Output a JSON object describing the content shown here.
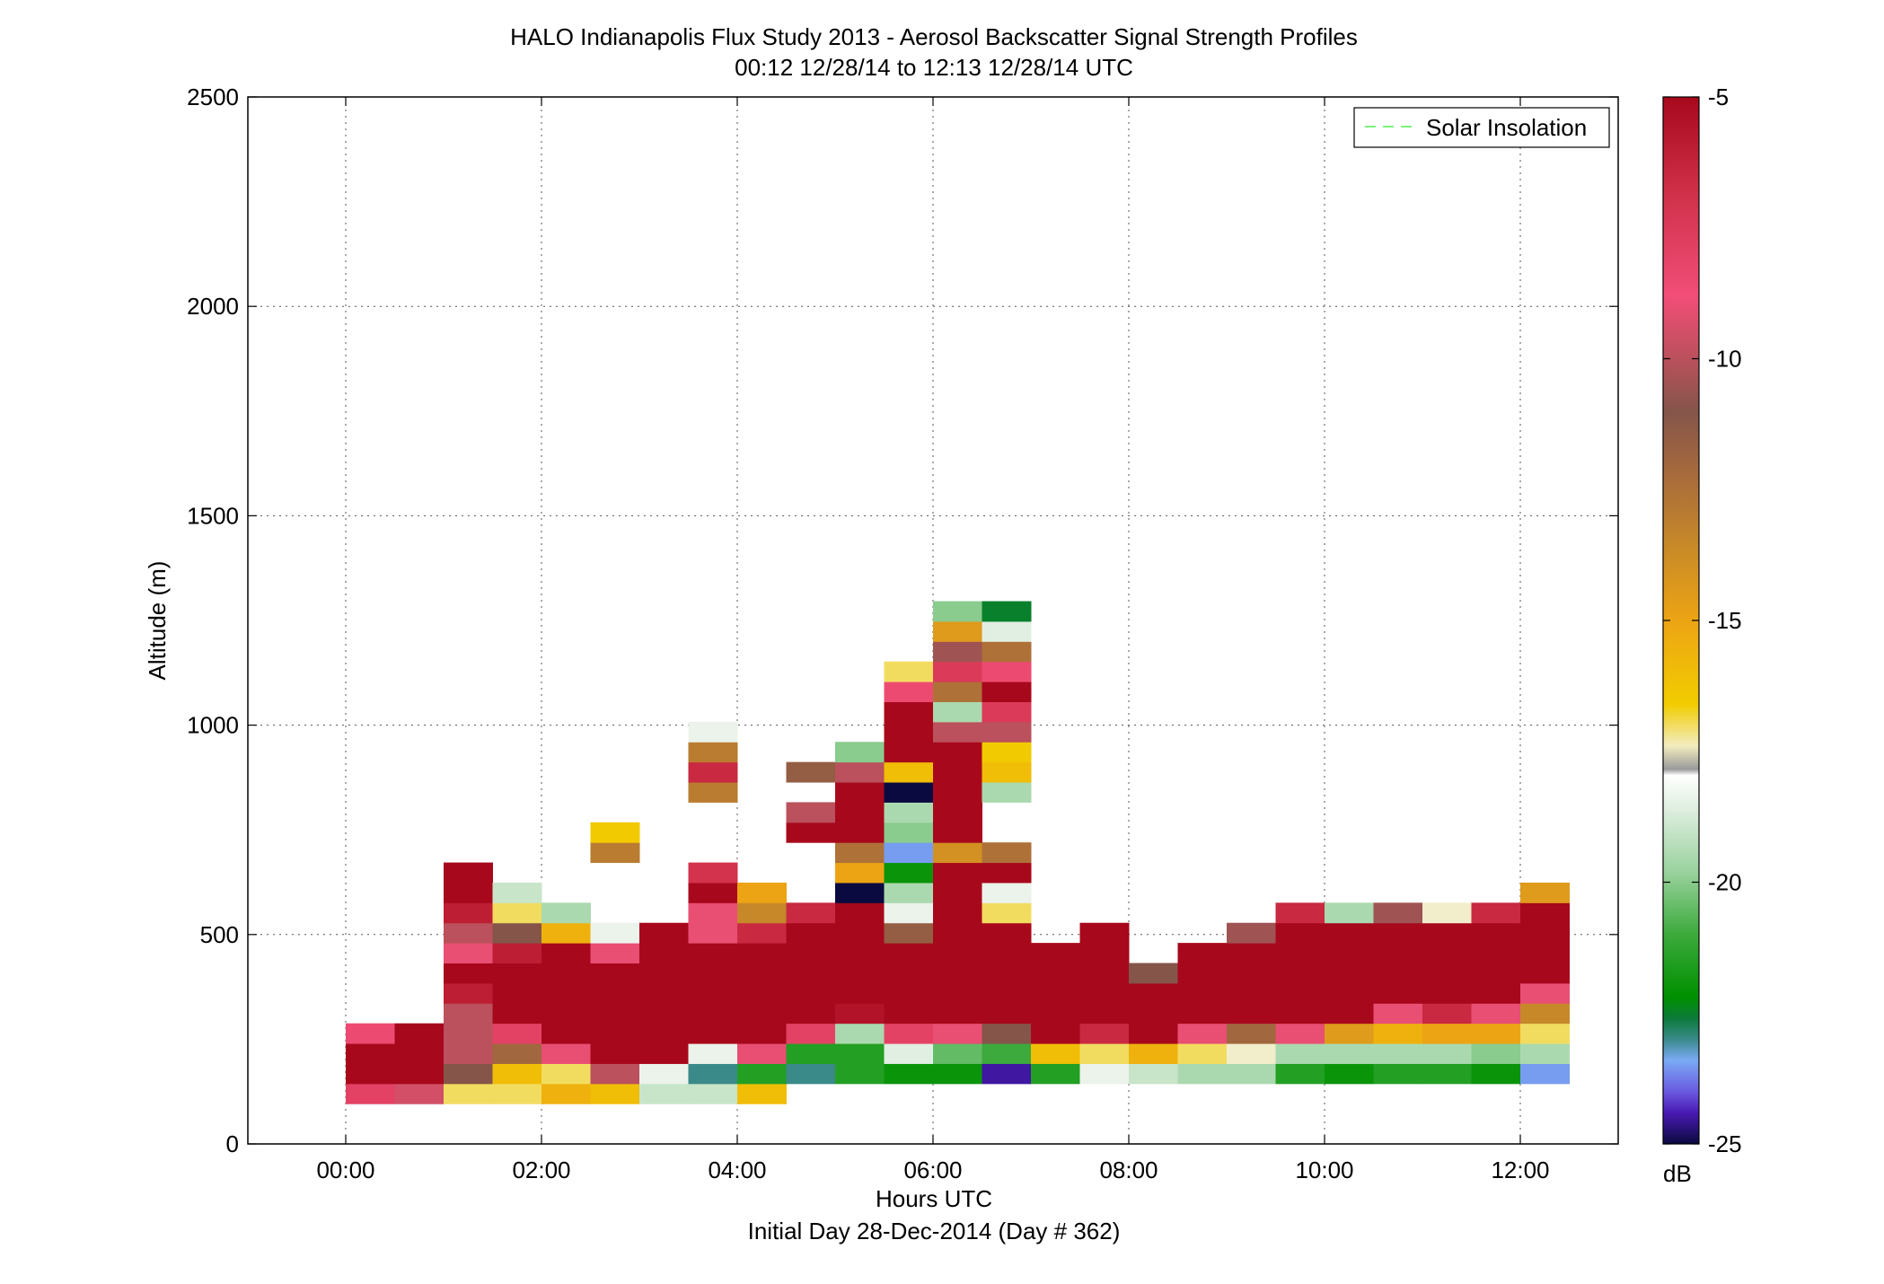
{
  "chart_data": {
    "type": "heatmap",
    "title": "HALO Indianapolis Flux Study 2013 - Aerosol Backscatter Signal Strength Profiles",
    "subtitle": "00:12 12/28/14 to 12:13 12/28/14  UTC",
    "xlabel": "Hours UTC",
    "xlabel2": "Initial Day 28-Dec-2014 (Day # 362)",
    "ylabel": "Altitude (m)",
    "xlim": [
      -1,
      13
    ],
    "ylim": [
      0,
      2500
    ],
    "x_ticks": [
      0,
      2,
      4,
      6,
      8,
      10,
      12
    ],
    "x_tick_labels": [
      "00:00",
      "02:00",
      "04:00",
      "06:00",
      "08:00",
      "10:00",
      "12:00"
    ],
    "y_ticks": [
      0,
      500,
      1000,
      1500,
      2000,
      2500
    ],
    "y_tick_labels": [
      "0",
      "500",
      "1000",
      "1500",
      "2000",
      "2500"
    ],
    "grid": true,
    "legend": {
      "position": "top-right",
      "entries": [
        {
          "label": "Solar Insolation",
          "color": "#7CF27C",
          "style": "dashed"
        }
      ]
    },
    "colorbar": {
      "label": "dB",
      "range": [
        -25,
        -5
      ],
      "ticks": [
        -5,
        -10,
        -15,
        -20,
        -25
      ],
      "tick_labels": [
        "-5",
        "-10",
        "-15",
        "-20",
        "-25"
      ]
    },
    "x_bin_hours": 0.5,
    "y_bin_m": 48,
    "y_base_m": 96,
    "columns": [
      {
        "x": 0.25,
        "values": [
          -8,
          -5,
          -5,
          -8.5
        ]
      },
      {
        "x": 0.75,
        "values": [
          -9.5,
          -5,
          -5,
          -5
        ]
      },
      {
        "x": 1.25,
        "values": [
          -17,
          -11,
          -10,
          -10,
          -10,
          -6,
          -5,
          -9,
          -10,
          -6,
          -5,
          -5
        ]
      },
      {
        "x": 1.75,
        "values": [
          -17,
          -16,
          -12,
          -8,
          -5,
          -5,
          -5,
          -6,
          -11,
          -17,
          -19
        ]
      },
      {
        "x": 2.25,
        "values": [
          -15.5,
          -17,
          -9,
          -5,
          -5,
          -5,
          -5,
          -5,
          -15.5,
          -19.5
        ]
      },
      {
        "x": 2.75,
        "values": [
          -16,
          -10,
          -5,
          -5,
          -5,
          -5,
          -5,
          -9,
          -18,
          null,
          null,
          null,
          -13,
          -16.5
        ]
      },
      {
        "x": 3.25,
        "values": [
          -19,
          -18,
          -5,
          -5,
          -5,
          -5,
          -5,
          -5,
          -5
        ]
      },
      {
        "x": 3.75,
        "values": [
          -19,
          -23,
          -18,
          -5,
          -5,
          -5,
          -5,
          -5,
          -9,
          -9,
          -5,
          -7,
          null,
          null,
          null,
          -13,
          -6.5,
          -13,
          -18
        ]
      },
      {
        "x": 4.25,
        "values": [
          -16,
          -21.5,
          -9,
          -5,
          -5,
          -5,
          -5,
          -5,
          -6.5,
          -13.5,
          -15
        ]
      },
      {
        "x": 4.75,
        "values": [
          null,
          -23,
          -21.5,
          -8,
          -5,
          -5,
          -5,
          -5,
          -5,
          -6.5,
          null,
          null,
          null,
          -5,
          -10,
          null,
          -11.5
        ]
      },
      {
        "x": 5.25,
        "values": [
          null,
          -21.5,
          -21.5,
          -19.5,
          -5.5,
          -5,
          -5,
          -5,
          -5,
          -5,
          -25,
          -15,
          -12.5,
          -5,
          -5,
          -5,
          -10,
          -20
        ]
      },
      {
        "x": 5.75,
        "values": [
          null,
          -22,
          -18.5,
          -8,
          -5,
          -5,
          -5,
          -5,
          -11.5,
          -18,
          -19.5,
          -22,
          -23.5,
          -20,
          -19.5,
          -25,
          -16,
          -5,
          -5,
          -5,
          -8.5,
          -17
        ]
      },
      {
        "x": 6.25,
        "values": [
          null,
          -22,
          -20.5,
          -9,
          -5,
          -5,
          -5,
          -5,
          -5,
          -5,
          -5,
          -5,
          -14,
          -5,
          -5,
          -5,
          -5,
          -5,
          -10,
          -19.5,
          -12.5,
          -7.5,
          -10.5,
          -14.5,
          -20
        ]
      },
      {
        "x": 6.75,
        "values": [
          null,
          -24.5,
          -21,
          -11,
          -5,
          -5,
          -5,
          -5,
          -5,
          -17,
          -18,
          -5,
          -12.5,
          null,
          null,
          -19.5,
          -16,
          -16.5,
          -10,
          -7.5,
          -5,
          -8.5,
          -12.5,
          -18.5,
          -22.5
        ]
      },
      {
        "x": 7.25,
        "values": [
          null,
          -21.5,
          -16,
          -5,
          -5,
          -5,
          -5,
          -5
        ]
      },
      {
        "x": 7.75,
        "values": [
          null,
          -18,
          -17,
          -6.5,
          -5,
          -5,
          -5,
          -5,
          -5
        ]
      },
      {
        "x": 8.25,
        "values": [
          null,
          -19,
          -15.5,
          -5,
          -5,
          -5,
          -11
        ]
      },
      {
        "x": 8.75,
        "values": [
          null,
          -19.5,
          -17,
          -9,
          -5,
          -5,
          -5,
          -5
        ]
      },
      {
        "x": 9.25,
        "values": [
          null,
          -19.5,
          -17.5,
          -12,
          -5,
          -5,
          -5,
          -5,
          -10.5
        ]
      },
      {
        "x": 9.75,
        "values": [
          null,
          -21.5,
          -19.5,
          -9,
          -5,
          -5,
          -5,
          -5,
          -5,
          -6.5
        ]
      },
      {
        "x": 10.25,
        "values": [
          null,
          -22,
          -19.5,
          -14.5,
          -5,
          -5,
          -5,
          -5,
          -5,
          -19.5
        ]
      },
      {
        "x": 10.75,
        "values": [
          null,
          -21.5,
          -19.5,
          -15.5,
          -9,
          -5,
          -5,
          -5,
          -5,
          -10.5
        ]
      },
      {
        "x": 11.25,
        "values": [
          null,
          -21.5,
          -19.5,
          -15,
          -6.5,
          -5,
          -5,
          -5,
          -5,
          -17.5
        ]
      },
      {
        "x": 11.75,
        "values": [
          null,
          -22,
          -20,
          -15,
          -9,
          -5,
          -5,
          -5,
          -5,
          -6.5
        ]
      },
      {
        "x": 12.25,
        "values": [
          null,
          -23.5,
          -19.5,
          -17,
          -13.5,
          -9,
          -5,
          -5,
          -5,
          -5,
          -14.5
        ]
      }
    ]
  }
}
